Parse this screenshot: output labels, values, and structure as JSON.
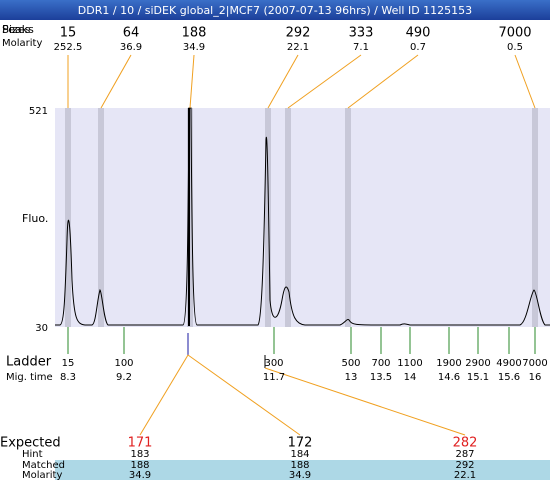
{
  "header": {
    "title": "DDR1 / 10 / siDEK global_2|MCF7 (2007-07-13 96hrs) / Well ID 1125153"
  },
  "peaks_label": "Peaks",
  "sizes_label": "Sizes",
  "molarity_label": "Molarity",
  "peaks": [
    {
      "size": 15,
      "molarity": 252.5
    },
    {
      "size": 64,
      "molarity": 36.9
    },
    {
      "size": 188,
      "molarity": 34.9
    },
    {
      "size": 292,
      "molarity": 22.1
    },
    {
      "size": 333,
      "molarity": 7.1
    },
    {
      "size": 490,
      "molarity": 0.7
    },
    {
      "size": 7000,
      "molarity": 0.5
    }
  ],
  "axis": {
    "label": "Fluo.",
    "max": 521,
    "min": 30
  },
  "ladder": {
    "label": "Ladder",
    "time_label": "Mig. time",
    "items": [
      {
        "size": 15,
        "time": 8.3
      },
      {
        "size": 100,
        "time": 9.2
      },
      {
        "size": 300,
        "time": 11.7
      },
      {
        "size": 500,
        "time": 13
      },
      {
        "size": 700,
        "time": 13.5
      },
      {
        "size": 1100,
        "time": 14
      },
      {
        "size": 1900,
        "time": 14.6
      },
      {
        "size": 2900,
        "time": 15.1
      },
      {
        "size": 4900,
        "time": 15.6
      },
      {
        "size": 7000,
        "time": 16
      }
    ]
  },
  "expected": {
    "labels": [
      "Expected",
      "Hint",
      "Matched",
      "Molarity"
    ],
    "columns": [
      {
        "expected": 171,
        "hint": 183,
        "matched": 188,
        "molarity": 34.9
      },
      {
        "expected": 172,
        "hint": 184,
        "matched": 188,
        "molarity": 34.9
      },
      {
        "expected": 282,
        "hint": 287,
        "matched": 292,
        "molarity": 22.1
      }
    ]
  }
}
